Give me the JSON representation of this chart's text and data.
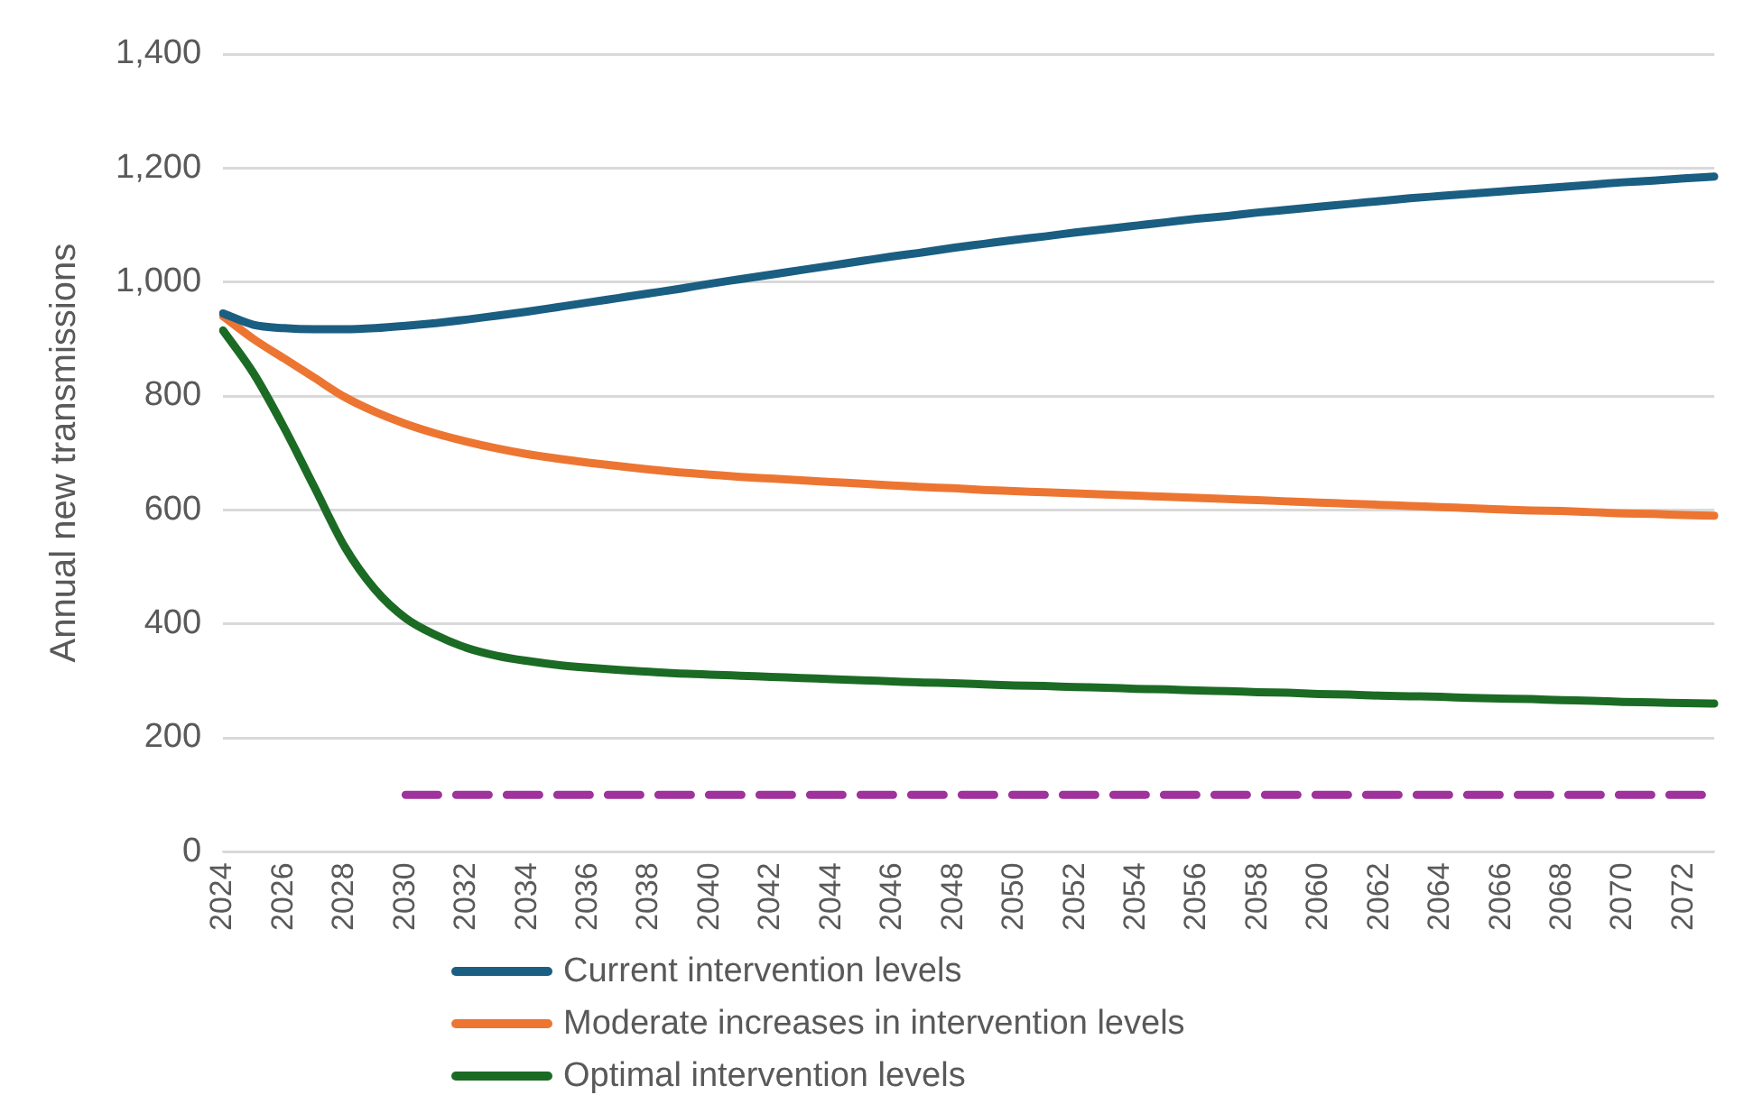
{
  "chart_data": {
    "type": "line",
    "ylabel": "Annual new transmissions",
    "categories": [
      "2024",
      null,
      "2026",
      null,
      "2028",
      null,
      "2030",
      null,
      "2032",
      null,
      "2034",
      null,
      "2036",
      null,
      "2038",
      null,
      "2040",
      null,
      "2042",
      null,
      "2044",
      null,
      "2046",
      null,
      "2048",
      null,
      "2050",
      null,
      "2052",
      null,
      "2054",
      null,
      "2056",
      null,
      "2058",
      null,
      "2060",
      null,
      "2062",
      null,
      "2064",
      null,
      "2066",
      null,
      "2068",
      null,
      "2070",
      null,
      "2072",
      null
    ],
    "series": [
      {
        "name": "Current intervention levels",
        "color": "#1a5e82",
        "values": [
          945,
          925,
          919,
          917,
          917,
          919,
          923,
          928,
          934,
          941,
          948,
          956,
          964,
          972,
          980,
          988,
          997,
          1005,
          1013,
          1021,
          1029,
          1037,
          1045,
          1052,
          1060,
          1067,
          1074,
          1080,
          1087,
          1093,
          1099,
          1105,
          1111,
          1116,
          1122,
          1127,
          1132,
          1137,
          1142,
          1147,
          1151,
          1155,
          1159,
          1163,
          1167,
          1171,
          1175,
          1178,
          1182,
          1185
        ]
      },
      {
        "name": "Moderate increases in intervention levels",
        "color": "#ed7532",
        "values": [
          940,
          900,
          866,
          832,
          798,
          772,
          751,
          734,
          720,
          708,
          698,
          690,
          683,
          677,
          671,
          666,
          662,
          658,
          655,
          652,
          649,
          646,
          643,
          640,
          638,
          635,
          633,
          631,
          629,
          627,
          625,
          623,
          621,
          619,
          617,
          615,
          613,
          611,
          609,
          607,
          605,
          603,
          601,
          599,
          598,
          596,
          594,
          593,
          591,
          590
        ]
      },
      {
        "name": "Optimal intervention levels",
        "color": "#1b6b24",
        "values": [
          915,
          840,
          745,
          640,
          535,
          460,
          410,
          380,
          358,
          344,
          335,
          328,
          323,
          319,
          316,
          313,
          311,
          309,
          307,
          305,
          303,
          301,
          299,
          297,
          296,
          294,
          292,
          291,
          289,
          288,
          286,
          285,
          283,
          282,
          280,
          279,
          277,
          276,
          274,
          273,
          272,
          270,
          269,
          268,
          266,
          265,
          263,
          262,
          261,
          260
        ]
      },
      {
        "color": "#a0329c",
        "line_style": "dashed",
        "values": [
          null,
          null,
          null,
          null,
          null,
          null,
          100,
          100,
          100,
          100,
          100,
          100,
          100,
          100,
          100,
          100,
          100,
          100,
          100,
          100,
          100,
          100,
          100,
          100,
          100,
          100,
          100,
          100,
          100,
          100,
          100,
          100,
          100,
          100,
          100,
          100,
          100,
          100,
          100,
          100,
          100,
          100,
          100,
          100,
          100,
          100,
          100,
          100,
          100,
          100
        ]
      }
    ],
    "ylim": [
      0,
      1400
    ],
    "yticks": [
      0,
      200,
      400,
      600,
      800,
      {
        "value": 1000,
        "label": "1,000"
      },
      {
        "value": 1200,
        "label": "1,200"
      },
      {
        "value": 1400,
        "label": "1,400"
      }
    ],
    "grid": "y",
    "legend": "bottom",
    "marker": "none",
    "line_style": "solid"
  }
}
